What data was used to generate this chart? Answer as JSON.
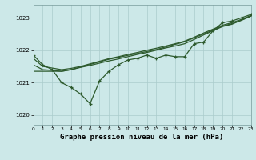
{
  "background_color": "#cce8e8",
  "grid_color": "#aacccc",
  "line_color": "#2d5a2d",
  "title": "Graphe pression niveau de la mer (hPa)",
  "xlim": [
    0,
    23
  ],
  "ylim": [
    1019.7,
    1023.4
  ],
  "yticks": [
    1020,
    1021,
    1022,
    1023
  ],
  "xticks": [
    0,
    1,
    2,
    3,
    4,
    5,
    6,
    7,
    8,
    9,
    10,
    11,
    12,
    13,
    14,
    15,
    16,
    17,
    18,
    19,
    20,
    21,
    22,
    23
  ],
  "series": {
    "jagged": [
      1021.85,
      1021.55,
      1021.4,
      1021.0,
      1020.85,
      1020.65,
      1020.35,
      1021.05,
      1021.35,
      1021.55,
      1021.7,
      1021.75,
      1021.85,
      1021.75,
      1021.85,
      1021.8,
      1021.8,
      1022.2,
      1022.25,
      1022.6,
      1022.85,
      1022.9,
      1023.0,
      1023.1
    ],
    "trend1": [
      1021.35,
      1021.35,
      1021.35,
      1021.35,
      1021.4,
      1021.47,
      1021.53,
      1021.6,
      1021.67,
      1021.73,
      1021.8,
      1021.87,
      1021.93,
      1022.0,
      1022.07,
      1022.13,
      1022.2,
      1022.33,
      1022.47,
      1022.6,
      1022.73,
      1022.8,
      1022.93,
      1023.05
    ],
    "trend2": [
      1021.55,
      1021.4,
      1021.38,
      1021.35,
      1021.4,
      1021.48,
      1021.56,
      1021.64,
      1021.72,
      1021.78,
      1021.84,
      1021.9,
      1021.96,
      1022.02,
      1022.1,
      1022.18,
      1022.26,
      1022.38,
      1022.5,
      1022.62,
      1022.74,
      1022.82,
      1022.92,
      1023.05
    ],
    "trend3": [
      1021.75,
      1021.5,
      1021.45,
      1021.4,
      1021.44,
      1021.5,
      1021.58,
      1021.66,
      1021.74,
      1021.8,
      1021.87,
      1021.93,
      1022.0,
      1022.06,
      1022.13,
      1022.2,
      1022.28,
      1022.4,
      1022.53,
      1022.65,
      1022.77,
      1022.85,
      1022.95,
      1023.07
    ]
  }
}
